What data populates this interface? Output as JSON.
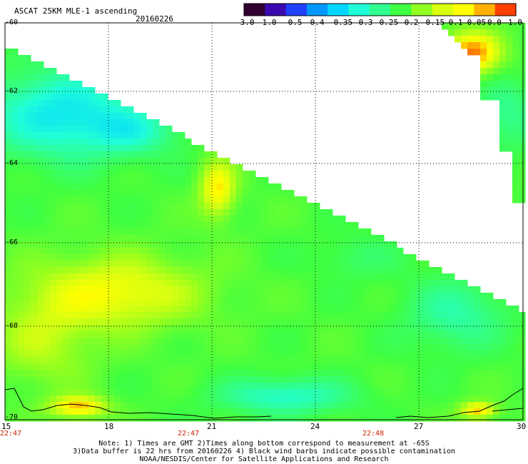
{
  "header": {
    "title": "ASCAT 25KM MLE-1 ascending",
    "date": "20160226"
  },
  "colorbar": {
    "tick_labels": [
      "-3.0",
      "-1.0",
      "-0.5",
      "-0.4",
      "-0.35",
      "-0.3",
      "-0.25",
      "-0.2",
      "-0.15",
      "-0.1",
      "-0.05",
      "0.0",
      "1.0"
    ],
    "colors": [
      "#300030",
      "#3a0ab0",
      "#2040ff",
      "#0098ff",
      "#00d6ff",
      "#20ffd8",
      "#30ff90",
      "#40ff40",
      "#90ff20",
      "#d8ff10",
      "#ffff00",
      "#ffb000",
      "#ff4000"
    ]
  },
  "map": {
    "lat_labels": [
      "-60",
      "-62",
      "-64",
      "-66",
      "-68",
      "-70"
    ],
    "lon_labels": [
      "15",
      "18",
      "21",
      "24",
      "27",
      "30"
    ],
    "time_labels": [
      "22:47",
      "22:47",
      "22:48"
    ]
  },
  "notes": [
    "Note: 1) Times are GMT 2)Times along bottom correspond to measurement at -65S",
    "3)Data buffer is 22 hrs from 20160226 4) Black wind barbs indicate possible contamination",
    "NOAA/NESDIS/Center for Satellite Applications and Research"
  ]
}
